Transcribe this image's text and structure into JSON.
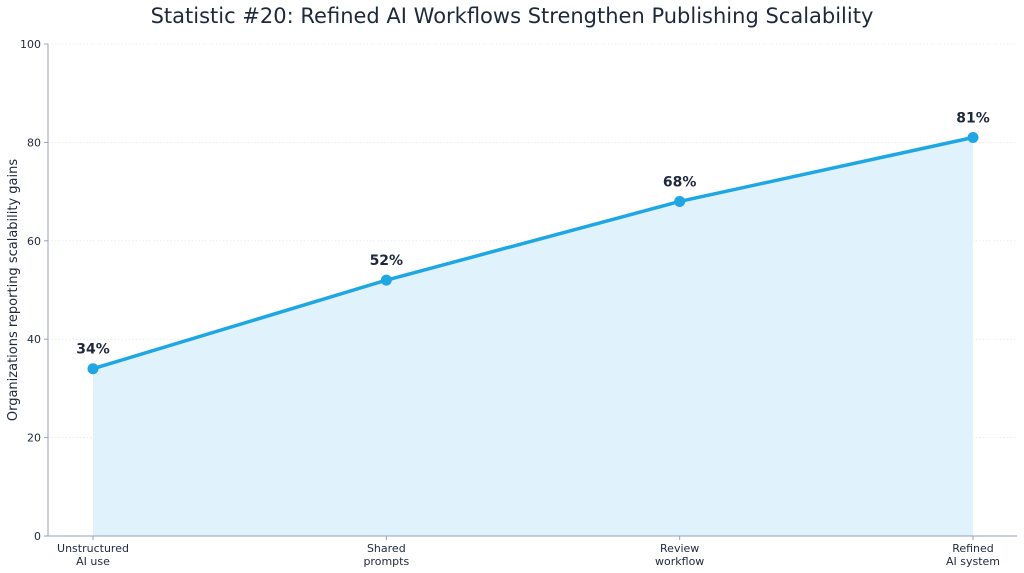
{
  "chart_data": {
    "type": "area",
    "title": "Statistic #20: Refined AI Workflows Strengthen Publishing Scalability",
    "xlabel": "",
    "ylabel": "Organizations reporting scalability gains",
    "categories": [
      [
        "Unstructured",
        "AI use"
      ],
      [
        "Shared",
        "prompts"
      ],
      [
        "Review",
        "workflow"
      ],
      [
        "Refined",
        "AI system"
      ]
    ],
    "series": [
      {
        "values": [
          34,
          52,
          68,
          81
        ]
      }
    ],
    "data_labels": [
      "34%",
      "52%",
      "68%",
      "81%"
    ],
    "ylim": [
      0,
      100
    ],
    "yticks": [
      0,
      20,
      40,
      60,
      80,
      100
    ],
    "grid": true,
    "colors": {
      "line": "#1ea7e4",
      "fill": "#e0f2fb",
      "axis": "#94a3b8",
      "grid": "#e5e7eb",
      "text": "#1e293b"
    }
  }
}
